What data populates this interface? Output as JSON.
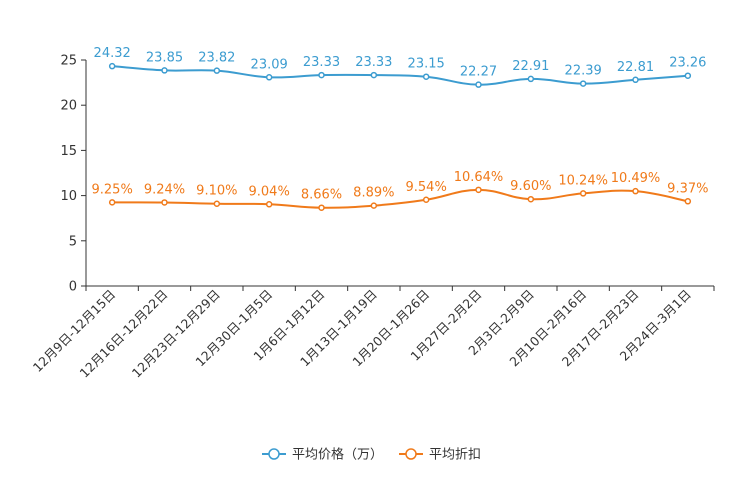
{
  "chart_data": {
    "type": "line",
    "title": "",
    "xlabel": "",
    "ylabel": "",
    "ylim": [
      0,
      25
    ],
    "yticks": [
      0,
      5,
      10,
      15,
      20,
      25
    ],
    "grid": false,
    "legend_position": "bottom-center",
    "categories": [
      "12月9日-12月15日",
      "12月16日-12月22日",
      "12月23日-12月29日",
      "12月30日-1月5日",
      "1月6日-1月12日",
      "1月13日-1月19日",
      "1月20日-1月26日",
      "1月27日-2月2日",
      "2月3日-2月9日",
      "2月10日-2月16日",
      "2月17日-2月23日",
      "2月24日-3月1日"
    ],
    "series": [
      {
        "name": "平均价格（万）",
        "color": "#3c9cd0",
        "values": [
          24.32,
          23.85,
          23.82,
          23.09,
          23.33,
          23.33,
          23.15,
          22.27,
          22.91,
          22.39,
          22.81,
          23.26
        ],
        "labels": [
          "24.32",
          "23.85",
          "23.82",
          "23.09",
          "23.33",
          "23.33",
          "23.15",
          "22.27",
          "22.91",
          "22.39",
          "22.81",
          "23.26"
        ]
      },
      {
        "name": "平均折扣",
        "color": "#f07a1a",
        "values": [
          9.25,
          9.24,
          9.1,
          9.04,
          8.66,
          8.89,
          9.54,
          10.64,
          9.6,
          10.24,
          10.49,
          9.37
        ],
        "labels": [
          "9.25%",
          "9.24%",
          "9.10%",
          "9.04%",
          "8.66%",
          "8.89%",
          "9.54%",
          "10.64%",
          "9.60%",
          "10.24%",
          "10.49%",
          "9.37%"
        ]
      }
    ]
  }
}
